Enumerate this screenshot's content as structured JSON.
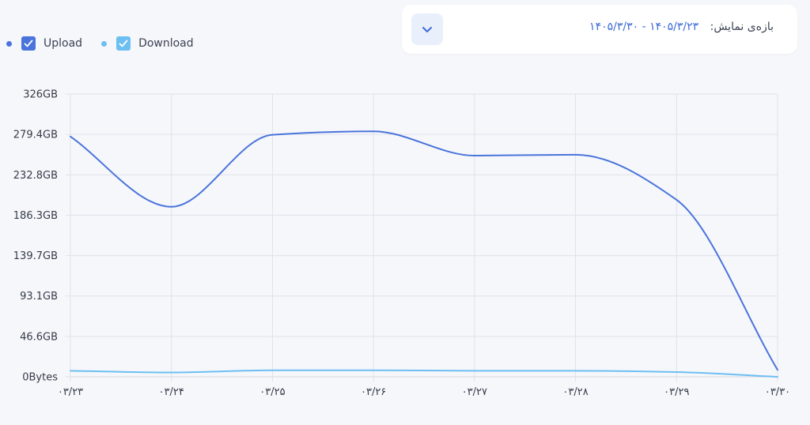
{
  "range_selector": {
    "label": "بازه‌ی نمایش:",
    "value": "۱۴۰۵/۳/۲۳ - ۱۴۰۵/۳/۳۰",
    "toggle_icon": "chevron-down-icon"
  },
  "colors": {
    "upload": "#4a74db",
    "download": "#6dbff2",
    "grid": "#dfe2ea",
    "accent": "#3d6bd6"
  },
  "chart_data": {
    "type": "line",
    "title": "",
    "xlabel": "",
    "ylabel": "",
    "categories": [
      "۰۳/۲۳",
      "۰۳/۲۴",
      "۰۳/۲۵",
      "۰۳/۲۶",
      "۰۳/۲۷",
      "۰۳/۲۸",
      "۰۳/۲۹",
      "۰۳/۳۰"
    ],
    "y_ticks": [
      "0Bytes",
      "46.6GB",
      "93.1GB",
      "139.7GB",
      "186.3GB",
      "232.8GB",
      "279.4GB",
      "326GB"
    ],
    "y_unit": "GB",
    "ylim": [
      0,
      326
    ],
    "grid": true,
    "legend_position": "top-left",
    "series": [
      {
        "name": "Upload",
        "values": [
          277,
          196,
          279,
          283,
          255,
          256,
          204,
          8
        ]
      },
      {
        "name": "Download",
        "values": [
          7,
          5,
          7.5,
          7.5,
          7,
          7,
          5.5,
          0
        ]
      }
    ]
  }
}
